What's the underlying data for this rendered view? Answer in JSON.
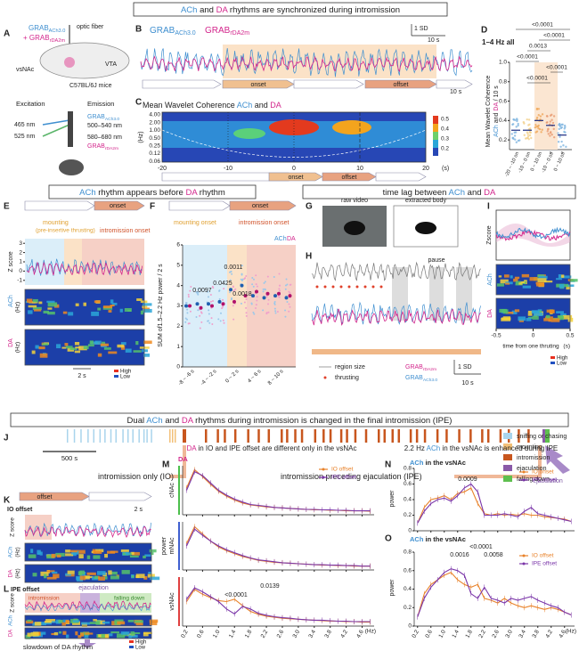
{
  "banners": {
    "top": [
      "ACh",
      " and ",
      "DA",
      " rhythms are synchronized during intromission"
    ],
    "row2_left": [
      "ACh",
      " rhythm appears before ",
      "DA",
      " rhythm"
    ],
    "row2_right": [
      "time lag between ",
      "ACh",
      " and ",
      "DA"
    ],
    "row3": [
      "Dual ",
      "ACh",
      " and ",
      "DA",
      " rhythms during intromission is changed in the final intromission (IPE)"
    ]
  },
  "panel_labels": [
    "A",
    "B",
    "C",
    "D",
    "E",
    "F",
    "G",
    "H",
    "I",
    "J",
    "K",
    "L",
    "M",
    "N",
    "O"
  ],
  "a": {
    "grab_ach": [
      "GRAB",
      "ACh3.0"
    ],
    "grab_da": [
      "+ GRAB",
      "rDA2m"
    ],
    "fiber": "optic fiber",
    "vsnac": "vsNAc",
    "vta": "VTA",
    "mice": "C57BL/6J mice",
    "excitation": "Excitation",
    "emission": "Emission",
    "ex1": "465 nm",
    "ex2": "525 nm",
    "em_ach": [
      "GRAB",
      "ACh3.0"
    ],
    "em1": "500–540 nm",
    "em2": "580–680 nm",
    "em_da": [
      "GRAB",
      "rDA2m"
    ]
  },
  "b": {
    "ach": [
      "GRAB",
      "ACh3.0"
    ],
    "da": [
      "GRAB",
      "rDA2m"
    ],
    "sd": "1 SD",
    "time": "10 s",
    "onset": "onset",
    "offset": "offset"
  },
  "c": {
    "title": [
      "Mean Wavelet Coherence ",
      "ACh",
      " and ",
      "DA"
    ],
    "ylabel": "(Hz)",
    "yticks": [
      "4.00",
      "2.00",
      "1.00",
      "0.50",
      "0.25",
      "0.12",
      "0.06"
    ],
    "xticks": [
      -20,
      -10,
      0,
      10,
      20
    ],
    "xunit": "(s)",
    "cbar": [
      0.5,
      0.4,
      0.3,
      0.2
    ],
    "onset": "onset",
    "offset": "offset"
  },
  "d": {
    "title": "1–4 Hz all",
    "ylabel": [
      "Mean Wavelet Coherence"
    ],
    "ylabel2": [
      "ACh",
      " and ",
      "DA",
      " / 10 s"
    ],
    "ylim": [
      0.1,
      1.0
    ],
    "yticks": [
      0.2,
      0.4,
      0.6,
      0.8,
      {
        "value": 1,
        "label": "1.0"
      }
    ],
    "categories": [
      "-20 ~ -10 on",
      "-10 ~ 0 on",
      "0 ~ 10 on",
      "-10 ~ 0 off",
      "0 ~ 10 off"
    ],
    "medians": [
      0.3,
      0.3,
      0.4,
      0.35,
      0.25
    ],
    "pvals": [
      "<0.0001",
      "<0.0001",
      "0.0013",
      "<0.0001",
      "<0.0001",
      "<0.0001"
    ]
  },
  "e": {
    "onset": "onset",
    "mounting": "mounting",
    "pre": "(pre-insertive thrusting)",
    "intro_onset": "intromission onset",
    "zscore": "Z score",
    "yticks": [
      3,
      2,
      1,
      0,
      -1
    ],
    "ylim": [
      -1.5,
      3.5
    ],
    "ach": "ACh",
    "da": "DA",
    "hz": "(Hz)",
    "time": "2 s",
    "high": "High",
    "low": "Low"
  },
  "f": {
    "onset": "onset",
    "mounting_onset": "mounting onset",
    "intro_onset": "intromission onset",
    "ach": "ACh",
    "da": "DA",
    "ylabel": [
      "SUM of",
      "1.5–2.2 Hz power / 2 s"
    ],
    "ylim": [
      0,
      6
    ],
    "yticks": [
      0,
      1,
      2,
      3,
      4,
      5,
      6
    ],
    "categories": [
      "-8 ~ -6 s",
      "-4 ~ -2 s",
      "0 ~ 2 s",
      "4 ~ 6 s",
      "8 ~ 10 s"
    ],
    "ach_means": [
      3.0,
      3.1,
      3.1,
      3.2,
      3.8,
      4.0,
      3.5,
      3.4,
      3.5,
      3.4
    ],
    "da_means": [
      3.0,
      2.9,
      3.0,
      3.1,
      3.2,
      3.5,
      3.7,
      3.6,
      3.6,
      3.5
    ],
    "pvals": [
      "0.0011",
      "0.0425",
      "0.0097",
      "0.0018"
    ]
  },
  "g": {
    "raw": "raw video",
    "extracted": "extracted body"
  },
  "h": {
    "pause": "pause",
    "region": "region size",
    "thrusting": "thrusting",
    "da": [
      "GRAB",
      "rDA2m"
    ],
    "ach": [
      "GRAB",
      "ACh3.0"
    ],
    "sd": "1 SD",
    "time": "10 s"
  },
  "i": {
    "ylabel": "Zscore",
    "ach": "ACh",
    "da": "DA",
    "xticks": [
      -0.5,
      0,
      0.5
    ],
    "xlabel": "time from one thruting",
    "unit": "(s)",
    "high": "High",
    "low": "Low"
  },
  "j": {
    "scale": "500 s",
    "io": [
      "intromission only (",
      "IO",
      ")"
    ],
    "ipe": [
      "intromission preceding ejaculation (",
      "IPE",
      ")"
    ],
    "ejaculation": "ejaculation",
    "legend": [
      {
        "name": "sniffing or chasing",
        "color": "#a9d4ec"
      },
      {
        "name": "mounting",
        "color": "#f2c078"
      },
      {
        "name": "intromission",
        "color": "#c8561e"
      },
      {
        "name": "ejaculation",
        "color": "#8a5aa8"
      },
      {
        "name": "falling down",
        "color": "#5fbf4f"
      }
    ]
  },
  "k": {
    "offset": "offset",
    "title": "IO offset",
    "zscore": "Z score",
    "time": "2 s",
    "ach": "ACh",
    "da": "DA",
    "hz": "(Hz)"
  },
  "l": {
    "title": "IPE offset",
    "ejaculation": "ejaculation",
    "intro": "intromission",
    "falling": "falling down",
    "zscore": "Z score",
    "ach": "ACh",
    "da": "DA",
    "hz": "(Hz)",
    "high": "High",
    "low": "Low",
    "note": "slowdown of DA rhythm"
  },
  "freq_axis": {
    "freqs": [
      0.2,
      0.4,
      0.6,
      0.8,
      1.0,
      1.2,
      1.4,
      1.6,
      1.8,
      2.0,
      2.2,
      2.4,
      2.6,
      2.8,
      3.0,
      3.2,
      3.4,
      3.6,
      3.8,
      4.0,
      4.2,
      4.4,
      4.6,
      4.8
    ],
    "xlim": [
      0.1,
      4.9
    ],
    "xticks": [
      0.2,
      0.6,
      {
        "value": 1,
        "label": "1.0"
      },
      1.4,
      1.8,
      2.2,
      2.6,
      {
        "value": 3,
        "label": "3.0"
      },
      3.4,
      3.8,
      4.2,
      4.6
    ],
    "unit": "(Hz)"
  },
  "m": {
    "title": [
      "DA",
      " in IO and IPE offset are different only in the vsNAc"
    ],
    "da": "DA",
    "ylabel": "power",
    "ylim": [
      0,
      1
    ],
    "panels": [
      {
        "region": "cNAc",
        "series": [
          {
            "name": "IO offset",
            "color": "#e8822a",
            "values": [
              0.55,
              0.92,
              0.78,
              0.62,
              0.48,
              0.38,
              0.3,
              0.24,
              0.2,
              0.18,
              0.16,
              0.15,
              0.14,
              0.13,
              0.12,
              0.11,
              0.1,
              0.1,
              0.09,
              0.09,
              0.08,
              0.08,
              0.08,
              0.07
            ]
          },
          {
            "name": "IPE offset",
            "color": "#7a35a8",
            "values": [
              0.5,
              0.88,
              0.8,
              0.65,
              0.5,
              0.4,
              0.32,
              0.26,
              0.21,
              0.19,
              0.17,
              0.15,
              0.14,
              0.13,
              0.12,
              0.11,
              0.11,
              0.1,
              0.1,
              0.09,
              0.09,
              0.08,
              0.08,
              0.08
            ]
          }
        ]
      },
      {
        "region": "mNAc",
        "series": [
          {
            "name": "IO offset",
            "color": "#e8822a",
            "values": [
              0.55,
              0.9,
              0.75,
              0.6,
              0.48,
              0.4,
              0.34,
              0.28,
              0.24,
              0.2,
              0.18,
              0.16,
              0.15,
              0.14,
              0.13,
              0.12,
              0.11,
              0.1,
              0.1,
              0.09,
              0.09,
              0.08,
              0.08,
              0.08
            ]
          },
          {
            "name": "IPE offset",
            "color": "#7a35a8",
            "values": [
              0.5,
              0.85,
              0.72,
              0.6,
              0.5,
              0.42,
              0.36,
              0.3,
              0.25,
              0.21,
              0.19,
              0.17,
              0.15,
              0.14,
              0.13,
              0.12,
              0.11,
              0.11,
              0.1,
              0.1,
              0.09,
              0.09,
              0.08,
              0.08
            ]
          }
        ]
      },
      {
        "region": "vsNAc",
        "series": [
          {
            "name": "IO offset",
            "color": "#e8822a",
            "values": [
              0.5,
              0.75,
              0.65,
              0.58,
              0.52,
              0.5,
              0.55,
              0.42,
              0.3,
              0.24,
              0.2,
              0.18,
              0.16,
              0.15,
              0.14,
              0.13,
              0.12,
              0.11,
              0.1,
              0.1,
              0.09,
              0.09,
              0.08,
              0.08
            ]
          },
          {
            "name": "IPE offset",
            "color": "#7a35a8",
            "values": [
              0.55,
              0.78,
              0.7,
              0.6,
              0.5,
              0.35,
              0.25,
              0.4,
              0.35,
              0.26,
              0.22,
              0.19,
              0.17,
              0.16,
              0.14,
              0.13,
              0.12,
              0.12,
              0.11,
              0.1,
              0.1,
              0.09,
              0.09,
              0.09
            ]
          }
        ]
      }
    ],
    "pvals": [
      "0.0139",
      "<0.0001"
    ]
  },
  "n": {
    "title": [
      "2.2 Hz ",
      "ACh",
      " in the vsNAc is enhanced during IPE"
    ],
    "sub": [
      "ACh",
      "  in  the vsNAc"
    ],
    "ylabel": "power",
    "ylim": [
      0,
      0.8
    ],
    "yticks": [
      0,
      0.2,
      0.4,
      0.6,
      0.8
    ],
    "series": [
      {
        "name": "IO onset",
        "color": "#e8822a",
        "values": [
          0.1,
          0.3,
          0.4,
          0.42,
          0.45,
          0.4,
          0.48,
          0.5,
          0.55,
          0.35,
          0.22,
          0.2,
          0.22,
          0.2,
          0.21,
          0.2,
          0.22,
          0.2,
          0.2,
          0.18,
          0.17,
          0.16,
          0.15,
          0.12
        ]
      },
      {
        "name": "IPE onset",
        "color": "#7a35a8",
        "values": [
          0.1,
          0.25,
          0.35,
          0.4,
          0.42,
          0.38,
          0.45,
          0.55,
          0.6,
          0.5,
          0.2,
          0.2,
          0.2,
          0.22,
          0.2,
          0.18,
          0.25,
          0.3,
          0.22,
          0.2,
          0.18,
          0.16,
          0.14,
          0.12
        ]
      }
    ],
    "pvals": [
      "0.0009"
    ]
  },
  "o": {
    "sub": [
      "ACh",
      "  in  the vsNAc"
    ],
    "ylabel": "power",
    "ylim": [
      0,
      0.8
    ],
    "yticks": [
      0,
      0.2,
      0.4,
      0.6,
      0.8
    ],
    "series": [
      {
        "name": "IO offset",
        "color": "#e8822a",
        "values": [
          0.1,
          0.35,
          0.45,
          0.5,
          0.55,
          0.58,
          0.5,
          0.45,
          0.42,
          0.45,
          0.3,
          0.28,
          0.25,
          0.3,
          0.25,
          0.22,
          0.2,
          0.22,
          0.2,
          0.18,
          0.2,
          0.18,
          0.15,
          0.12
        ]
      },
      {
        "name": "IPE offset",
        "color": "#7a35a8",
        "values": [
          0.1,
          0.3,
          0.42,
          0.5,
          0.58,
          0.62,
          0.6,
          0.55,
          0.35,
          0.3,
          0.42,
          0.3,
          0.28,
          0.25,
          0.3,
          0.28,
          0.3,
          0.32,
          0.28,
          0.25,
          0.22,
          0.2,
          0.15,
          0.12
        ]
      }
    ],
    "pvals": [
      "<0.0001",
      "0.0016",
      "0.0058"
    ]
  }
}
